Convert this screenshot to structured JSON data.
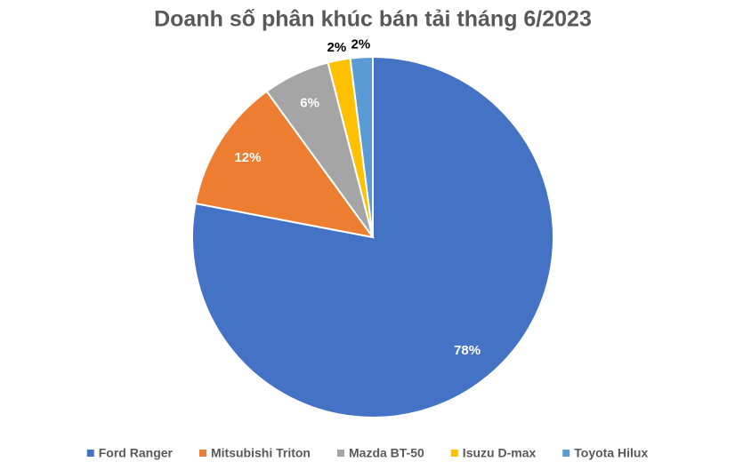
{
  "chart_data": {
    "type": "pie",
    "title": "Doanh số phân khúc bán tải tháng 6/2023",
    "categories": [
      "Ford Ranger",
      "Mitsubishi Triton",
      "Mazda BT-50",
      "Isuzu D-max",
      "Toyota Hilux"
    ],
    "values": [
      78,
      12,
      6,
      2,
      2
    ],
    "value_labels": [
      "78%",
      "12%",
      "6%",
      "2%",
      "2%"
    ],
    "colors": [
      "#4472c4",
      "#ed7d31",
      "#a5a5a5",
      "#ffc000",
      "#5b9bd5"
    ],
    "legend": "bottom"
  }
}
